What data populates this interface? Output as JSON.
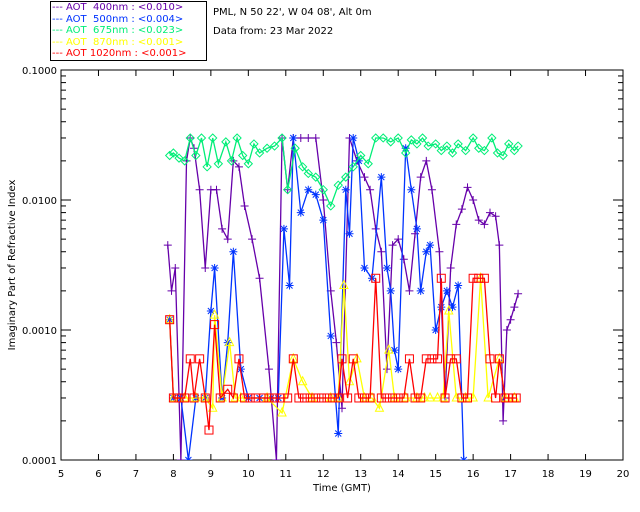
{
  "header": {
    "site": "PML, N 50 22', W 04 08', Alt 0m",
    "date": "Data from: 23 Mar 2022"
  },
  "chart_data": {
    "type": "line",
    "title": "",
    "xlabel": "Time (GMT)",
    "ylabel": "Imaginary Part of Refractive Index",
    "xlim": [
      5,
      20
    ],
    "ylim": [
      0.0001,
      0.1
    ],
    "yscale": "log",
    "xticks": [
      "5",
      "6",
      "7",
      "8",
      "9",
      "10",
      "11",
      "12",
      "13",
      "14",
      "15",
      "16",
      "17",
      "18",
      "19",
      "20"
    ],
    "yticks": [
      "0.0001",
      "0.0010",
      "0.0100",
      "0.1000"
    ],
    "legend_position": "top-left-outside",
    "series": [
      {
        "name": "AOT  400nm : <0.010>",
        "color": "#6600aa",
        "marker": "plus",
        "points": [
          [
            7.85,
            0.0045
          ],
          [
            7.95,
            0.002
          ],
          [
            8.05,
            0.003
          ],
          [
            8.2,
            0.0001
          ],
          [
            8.35,
            0.02
          ],
          [
            8.45,
            0.03
          ],
          [
            8.55,
            0.025
          ],
          [
            8.7,
            0.012
          ],
          [
            8.85,
            0.003
          ],
          [
            9.0,
            0.012
          ],
          [
            9.15,
            0.012
          ],
          [
            9.3,
            0.006
          ],
          [
            9.45,
            0.005
          ],
          [
            9.6,
            0.02
          ],
          [
            9.75,
            0.018
          ],
          [
            9.9,
            0.009
          ],
          [
            10.1,
            0.005
          ],
          [
            10.3,
            0.0025
          ],
          [
            10.55,
            0.0005
          ],
          [
            10.75,
            0.0001
          ],
          [
            10.9,
            0.03
          ],
          [
            11.05,
            0.012
          ],
          [
            11.2,
            0.03
          ],
          [
            11.4,
            0.03
          ],
          [
            11.6,
            0.03
          ],
          [
            11.8,
            0.03
          ],
          [
            12.0,
            0.01
          ],
          [
            12.2,
            0.002
          ],
          [
            12.35,
            0.0008
          ],
          [
            12.5,
            0.00025
          ],
          [
            12.7,
            0.03
          ],
          [
            12.9,
            0.02
          ],
          [
            13.1,
            0.015
          ],
          [
            13.25,
            0.012
          ],
          [
            13.4,
            0.006
          ],
          [
            13.55,
            0.004
          ],
          [
            13.7,
            0.0005
          ],
          [
            13.85,
            0.0045
          ],
          [
            14.0,
            0.005
          ],
          [
            14.15,
            0.0035
          ],
          [
            14.3,
            0.002
          ],
          [
            14.45,
            0.0055
          ],
          [
            14.6,
            0.015
          ],
          [
            14.75,
            0.02
          ],
          [
            14.9,
            0.012
          ],
          [
            15.1,
            0.004
          ],
          [
            15.25,
            0.0003
          ],
          [
            15.4,
            0.003
          ],
          [
            15.55,
            0.0065
          ],
          [
            15.7,
            0.0085
          ],
          [
            15.85,
            0.0125
          ],
          [
            16.0,
            0.01
          ],
          [
            16.15,
            0.007
          ],
          [
            16.3,
            0.0065
          ],
          [
            16.45,
            0.008
          ],
          [
            16.6,
            0.0075
          ],
          [
            16.7,
            0.0045
          ],
          [
            16.8,
            0.0002
          ],
          [
            16.9,
            0.001
          ],
          [
            17.0,
            0.0012
          ],
          [
            17.1,
            0.0015
          ],
          [
            17.2,
            0.0019
          ]
        ]
      },
      {
        "name": "AOT  500nm : <0.004>",
        "color": "#0033ff",
        "marker": "asterisk",
        "points": [
          [
            7.9,
            0.0012
          ],
          [
            8.0,
            0.0003
          ],
          [
            8.2,
            0.0003
          ],
          [
            8.4,
            0.0001
          ],
          [
            8.6,
            0.0003
          ],
          [
            8.85,
            0.0003
          ],
          [
            9.0,
            0.0014
          ],
          [
            9.1,
            0.003
          ],
          [
            9.3,
            0.0003
          ],
          [
            9.45,
            0.0008
          ],
          [
            9.6,
            0.004
          ],
          [
            9.8,
            0.0005
          ],
          [
            10.0,
            0.0003
          ],
          [
            10.3,
            0.0003
          ],
          [
            10.6,
            0.0003
          ],
          [
            10.8,
            0.0003
          ],
          [
            10.95,
            0.006
          ],
          [
            11.1,
            0.0022
          ],
          [
            11.2,
            0.03
          ],
          [
            11.4,
            0.008
          ],
          [
            11.6,
            0.012
          ],
          [
            11.8,
            0.011
          ],
          [
            12.0,
            0.007
          ],
          [
            12.2,
            0.0009
          ],
          [
            12.4,
            0.00016
          ],
          [
            12.6,
            0.012
          ],
          [
            12.7,
            0.0055
          ],
          [
            12.8,
            0.03
          ],
          [
            12.95,
            0.02
          ],
          [
            13.1,
            0.003
          ],
          [
            13.3,
            0.0025
          ],
          [
            13.55,
            0.015
          ],
          [
            13.7,
            0.003
          ],
          [
            13.8,
            0.002
          ],
          [
            13.9,
            0.0007
          ],
          [
            14.0,
            0.0005
          ],
          [
            14.2,
            0.025
          ],
          [
            14.35,
            0.012
          ],
          [
            14.5,
            0.006
          ],
          [
            14.6,
            0.002
          ],
          [
            14.75,
            0.004
          ],
          [
            14.85,
            0.0045
          ],
          [
            15.0,
            0.001
          ],
          [
            15.15,
            0.0015
          ],
          [
            15.3,
            0.002
          ],
          [
            15.45,
            0.0015
          ],
          [
            15.6,
            0.0022
          ],
          [
            15.75,
            0.0001
          ]
        ]
      },
      {
        "name": "AOT  675nm : <0.023>",
        "color": "#00ee77",
        "marker": "diamond",
        "points": [
          [
            7.9,
            0.022
          ],
          [
            8.0,
            0.023
          ],
          [
            8.15,
            0.021
          ],
          [
            8.3,
            0.02
          ],
          [
            8.45,
            0.03
          ],
          [
            8.6,
            0.022
          ],
          [
            8.75,
            0.03
          ],
          [
            8.9,
            0.018
          ],
          [
            9.05,
            0.03
          ],
          [
            9.2,
            0.019
          ],
          [
            9.4,
            0.028
          ],
          [
            9.55,
            0.02
          ],
          [
            9.7,
            0.03
          ],
          [
            9.85,
            0.022
          ],
          [
            10.0,
            0.019
          ],
          [
            10.15,
            0.027
          ],
          [
            10.3,
            0.023
          ],
          [
            10.5,
            0.025
          ],
          [
            10.7,
            0.026
          ],
          [
            10.9,
            0.03
          ],
          [
            11.05,
            0.012
          ],
          [
            11.25,
            0.025
          ],
          [
            11.45,
            0.018
          ],
          [
            11.6,
            0.016
          ],
          [
            11.8,
            0.015
          ],
          [
            12.0,
            0.012
          ],
          [
            12.2,
            0.009
          ],
          [
            12.4,
            0.013
          ],
          [
            12.6,
            0.015
          ],
          [
            12.8,
            0.018
          ],
          [
            13.0,
            0.022
          ],
          [
            13.2,
            0.019
          ],
          [
            13.4,
            0.03
          ],
          [
            13.6,
            0.03
          ],
          [
            13.8,
            0.028
          ],
          [
            14.0,
            0.03
          ],
          [
            14.2,
            0.023
          ],
          [
            14.35,
            0.029
          ],
          [
            14.5,
            0.027
          ],
          [
            14.65,
            0.03
          ],
          [
            14.8,
            0.026
          ],
          [
            15.0,
            0.027
          ],
          [
            15.15,
            0.024
          ],
          [
            15.3,
            0.026
          ],
          [
            15.45,
            0.023
          ],
          [
            15.6,
            0.027
          ],
          [
            15.8,
            0.024
          ],
          [
            16.0,
            0.03
          ],
          [
            16.15,
            0.025
          ],
          [
            16.3,
            0.024
          ],
          [
            16.5,
            0.03
          ],
          [
            16.65,
            0.023
          ],
          [
            16.8,
            0.022
          ],
          [
            16.95,
            0.027
          ],
          [
            17.1,
            0.024
          ],
          [
            17.2,
            0.026
          ]
        ]
      },
      {
        "name": "AOT  870nm : <0.001>",
        "color": "#ffff00",
        "marker": "triangle",
        "points": [
          [
            7.9,
            0.0012
          ],
          [
            8.0,
            0.0003
          ],
          [
            8.3,
            0.0003
          ],
          [
            8.6,
            0.0003
          ],
          [
            8.85,
            0.0003
          ],
          [
            9.05,
            0.00025
          ],
          [
            9.1,
            0.0013
          ],
          [
            9.3,
            0.0003
          ],
          [
            9.5,
            0.0008
          ],
          [
            9.65,
            0.0003
          ],
          [
            9.8,
            0.0003
          ],
          [
            10.5,
            0.0003
          ],
          [
            10.9,
            0.00023
          ],
          [
            11.2,
            0.0006
          ],
          [
            11.45,
            0.0004
          ],
          [
            11.7,
            0.0003
          ],
          [
            12.2,
            0.0003
          ],
          [
            12.4,
            0.0003
          ],
          [
            12.55,
            0.0022
          ],
          [
            12.7,
            0.0004
          ],
          [
            12.9,
            0.0006
          ],
          [
            13.1,
            0.0003
          ],
          [
            13.3,
            0.0003
          ],
          [
            13.5,
            0.00025
          ],
          [
            13.75,
            0.0007
          ],
          [
            13.9,
            0.0003
          ],
          [
            14.2,
            0.0003
          ],
          [
            14.5,
            0.0003
          ],
          [
            14.7,
            0.0003
          ],
          [
            14.85,
            0.0003
          ],
          [
            15.05,
            0.0003
          ],
          [
            15.2,
            0.0003
          ],
          [
            15.35,
            0.0014
          ],
          [
            15.55,
            0.0003
          ],
          [
            15.8,
            0.0003
          ],
          [
            16.0,
            0.0003
          ],
          [
            16.2,
            0.0025
          ],
          [
            16.4,
            0.0003
          ],
          [
            16.7,
            0.0006
          ],
          [
            16.85,
            0.0003
          ],
          [
            17.1,
            0.0003
          ]
        ]
      },
      {
        "name": "AOT 1020nm : <0.001>",
        "color": "#ff0000",
        "marker": "square",
        "points": [
          [
            7.9,
            0.0012
          ],
          [
            8.0,
            0.0003
          ],
          [
            8.15,
            0.0003
          ],
          [
            8.3,
            0.0003
          ],
          [
            8.45,
            0.0006
          ],
          [
            8.55,
            0.0003
          ],
          [
            8.7,
            0.0006
          ],
          [
            8.85,
            0.0003
          ],
          [
            8.95,
            0.00017
          ],
          [
            9.1,
            0.0011
          ],
          [
            9.25,
            0.0003
          ],
          [
            9.45,
            0.00035
          ],
          [
            9.6,
            0.0003
          ],
          [
            9.75,
            0.0006
          ],
          [
            9.9,
            0.0003
          ],
          [
            10.05,
            0.0003
          ],
          [
            10.2,
            0.0003
          ],
          [
            10.4,
            0.0003
          ],
          [
            10.55,
            0.0003
          ],
          [
            10.7,
            0.0003
          ],
          [
            10.85,
            0.0003
          ],
          [
            11.05,
            0.0003
          ],
          [
            11.2,
            0.0006
          ],
          [
            11.35,
            0.0003
          ],
          [
            11.5,
            0.0003
          ],
          [
            11.65,
            0.0003
          ],
          [
            11.8,
            0.0003
          ],
          [
            11.95,
            0.0003
          ],
          [
            12.1,
            0.0003
          ],
          [
            12.25,
            0.0003
          ],
          [
            12.4,
            0.0003
          ],
          [
            12.5,
            0.0006
          ],
          [
            12.65,
            0.0003
          ],
          [
            12.8,
            0.0006
          ],
          [
            12.95,
            0.0003
          ],
          [
            13.1,
            0.0003
          ],
          [
            13.25,
            0.0003
          ],
          [
            13.4,
            0.0025
          ],
          [
            13.55,
            0.0003
          ],
          [
            13.7,
            0.0003
          ],
          [
            13.85,
            0.0003
          ],
          [
            14.0,
            0.0003
          ],
          [
            14.15,
            0.0003
          ],
          [
            14.3,
            0.0006
          ],
          [
            14.45,
            0.0003
          ],
          [
            14.6,
            0.0003
          ],
          [
            14.75,
            0.0006
          ],
          [
            14.9,
            0.0006
          ],
          [
            15.05,
            0.0006
          ],
          [
            15.15,
            0.0025
          ],
          [
            15.25,
            0.0003
          ],
          [
            15.4,
            0.0006
          ],
          [
            15.55,
            0.0006
          ],
          [
            15.7,
            0.0003
          ],
          [
            15.85,
            0.0003
          ],
          [
            16.0,
            0.0025
          ],
          [
            16.15,
            0.0025
          ],
          [
            16.3,
            0.0025
          ],
          [
            16.45,
            0.0006
          ],
          [
            16.6,
            0.0003
          ],
          [
            16.7,
            0.0006
          ],
          [
            16.85,
            0.0003
          ],
          [
            16.95,
            0.0003
          ],
          [
            17.05,
            0.0003
          ],
          [
            17.15,
            0.0003
          ]
        ]
      }
    ]
  }
}
